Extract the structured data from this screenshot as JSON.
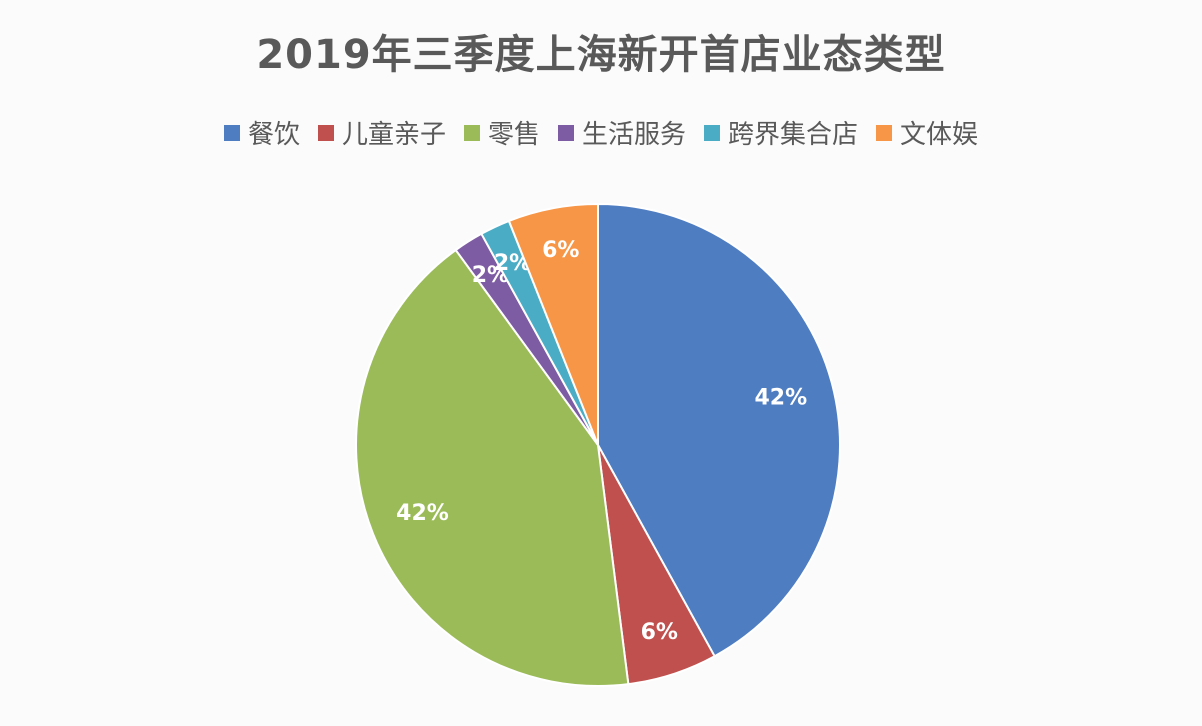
{
  "chart_data": {
    "type": "pie",
    "title": "2019年三季度上海新开首店业态类型",
    "legend_position": "top",
    "categories": [
      "餐饮",
      "儿童亲子",
      "零售",
      "生活服务",
      "跨界集合店",
      "文体娱"
    ],
    "values": [
      42,
      6,
      42,
      2,
      2,
      6
    ],
    "labels": [
      "42%",
      "6%",
      "42%",
      "2%",
      "2%",
      "6%"
    ],
    "colors": [
      "#4F7DC1",
      "#C0504D",
      "#9BBB59",
      "#7E5CA3",
      "#4BACC6",
      "#F79646"
    ]
  }
}
